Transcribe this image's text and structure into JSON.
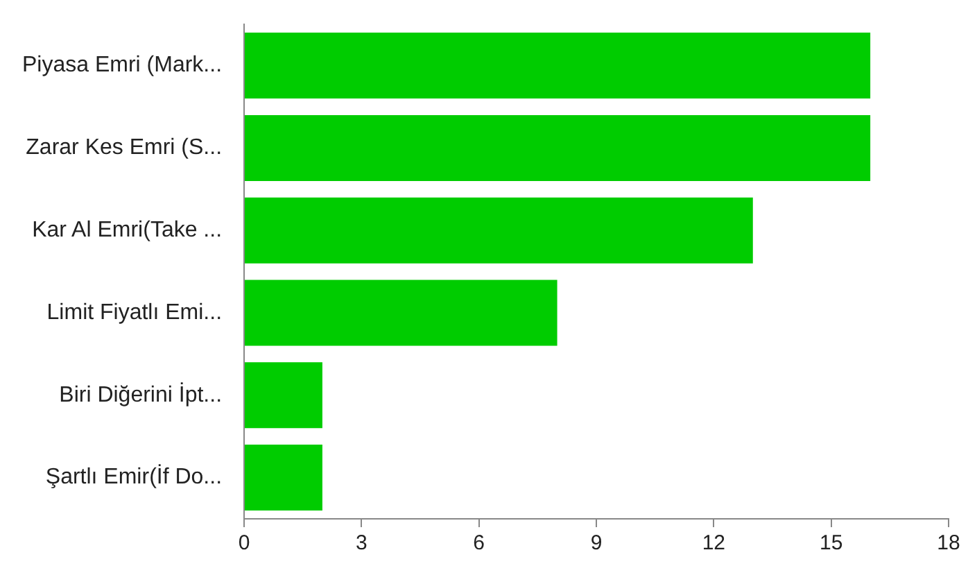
{
  "chart_data": {
    "type": "bar",
    "orientation": "horizontal",
    "categories": [
      "Piyasa Emri (Mark...",
      "Zarar Kes Emri (S...",
      "Kar Al Emri(Take ...",
      "Limit Fiyatlı Emi...",
      "Biri Diğerini İpt...",
      "Şartlı Emir(İf Do..."
    ],
    "values": [
      16,
      16,
      13,
      8,
      2,
      2
    ],
    "color": "#00cc00",
    "xlim": [
      0,
      18
    ],
    "xticks": [
      0,
      3,
      6,
      9,
      12,
      15,
      18
    ],
    "grid": false,
    "legend": false
  }
}
